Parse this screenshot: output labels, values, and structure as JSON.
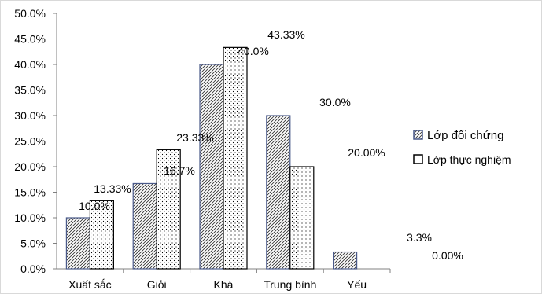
{
  "chart_data": {
    "type": "bar",
    "categories": [
      "Xuất sắc",
      "Giỏi",
      "Khá",
      "Trung bình",
      "Yếu"
    ],
    "series": [
      {
        "name": "Lớp đối chứng",
        "values": [
          10.0,
          16.7,
          40.0,
          30.0,
          3.3
        ],
        "labels": [
          "10.0%",
          "16.7%",
          "40.0%",
          "30.0%",
          "3.3%"
        ],
        "pattern": "diagonal-hatch",
        "color": "#4a5a8a"
      },
      {
        "name": "Lớp thực nghiệm",
        "values": [
          13.33,
          23.33,
          43.33,
          20.0,
          0.0
        ],
        "labels": [
          "13.33%",
          "23.33%",
          "43.33%",
          "20.00%",
          "0.00%"
        ],
        "pattern": "dots",
        "color": "#000000"
      }
    ],
    "ylim": [
      0,
      50
    ],
    "yticks": [
      "0.0%",
      "5.0%",
      "10.0%",
      "15.0%",
      "20.0%",
      "25.0%",
      "30.0%",
      "35.0%",
      "40.0%",
      "45.0%",
      "50.0%"
    ],
    "title": "",
    "xlabel": "",
    "ylabel": "",
    "grid": false,
    "legend": "right"
  }
}
